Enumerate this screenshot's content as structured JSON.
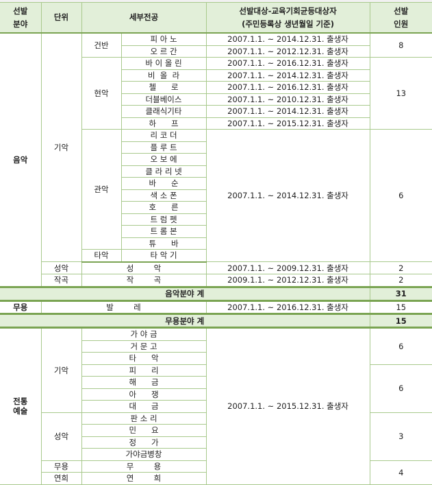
{
  "header": {
    "field": "선발\n분야",
    "unit": "단위",
    "major": "세부전공",
    "target_line1": "선발대상-교육기회균등대상자",
    "target_line2": "(주민등록상 생년월일 기준)",
    "count": "선발\n인원"
  },
  "music": {
    "field": "음악",
    "instrument_unit": "기악",
    "keyboard": {
      "group": "건반",
      "items": [
        {
          "name": "피 아 노",
          "target": "2007.1.1. ~ 2014.12.31. 출생자"
        },
        {
          "name": "오 르 간",
          "target": "2007.1.1. ~ 2012.12.31. 출생자"
        }
      ],
      "count": "8"
    },
    "strings": {
      "group": "현악",
      "items": [
        {
          "name": "바 이 올 린",
          "target": "2007.1.1. ~ 2016.12.31. 출생자"
        },
        {
          "name": "비  올  라",
          "target": "2007.1.1. ~ 2014.12.31. 출생자"
        },
        {
          "name": "첼      로",
          "target": "2007.1.1. ~ 2016.12.31. 출생자"
        },
        {
          "name": "더블베이스",
          "target": "2007.1.1. ~ 2010.12.31. 출생자"
        },
        {
          "name": "클래식기타",
          "target": "2007.1.1. ~ 2014.12.31. 출생자"
        },
        {
          "name": "하      프",
          "target": "2007.1.1. ~ 2015.12.31. 출생자"
        }
      ],
      "count": "13"
    },
    "winds": {
      "group": "관악",
      "items": [
        "리 코 더",
        "플 루 트",
        "오 보 에",
        "클 라 리 넷",
        "바      순",
        "색 소 폰",
        "호      른",
        "트 럼 펫",
        "트 롬 본",
        "튜      바"
      ]
    },
    "percussion": {
      "group": "타악",
      "item": "타 악 기"
    },
    "winds_target": "2007.1.1. ~ 2014.12.31. 출생자",
    "winds_count": "6",
    "vocal": {
      "unit": "성악",
      "major": "성        악",
      "target": "2007.1.1. ~ 2009.12.31. 출생자",
      "count": "2"
    },
    "composition": {
      "unit": "작곡",
      "major": "작        곡",
      "target": "2009.1.1. ~ 2012.12.31. 출생자",
      "count": "2"
    },
    "total_label": "음악분야 계",
    "total": "31"
  },
  "dance": {
    "field": "무용",
    "major": "발        레",
    "target": "2007.1.1. ~ 2016.12.31. 출생자",
    "count": "15",
    "total_label": "무용분야 계",
    "total": "15"
  },
  "traditional": {
    "field_line1": "전통",
    "field_line2": "예술",
    "instrument_unit": "기악",
    "instruments_a": [
      "가 야 금",
      "거 문 고",
      "타      악"
    ],
    "count_a": "6",
    "instruments_b": [
      "피      리",
      "해      금",
      "아      쟁",
      "대      금"
    ],
    "count_b": "6",
    "vocal_unit": "성악",
    "vocal": [
      "판 소 리",
      "민      요",
      "정      가",
      "가야금병창"
    ],
    "count_vocal": "3",
    "dance_unit": "무용",
    "dance": "무        용",
    "perf_unit": "연희",
    "perf": "연        희",
    "count_dp": "4",
    "target": "2007.1.1. ~ 2015.12.31. 출생자"
  },
  "colors": {
    "header_bg": "#e2efd9",
    "border": "#a8c98c",
    "thick_border": "#7aa452"
  }
}
